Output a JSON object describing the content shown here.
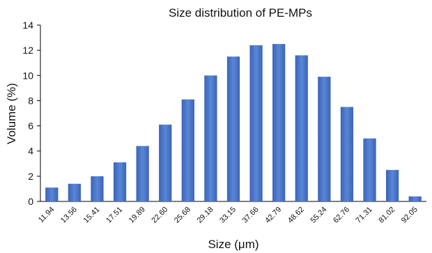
{
  "chart_data": {
    "type": "bar",
    "title": "Size distribution of PE-MPs",
    "xlabel": "Size (μm)",
    "ylabel": "Volume (%)",
    "ylim": [
      0,
      14
    ],
    "yticks": [
      0,
      2,
      4,
      6,
      8,
      10,
      12,
      14
    ],
    "grid": false,
    "legend": "none",
    "bar_color": "#4472c4",
    "categories": [
      "11.94",
      "13.56",
      "15.41",
      "17.51",
      "19.89",
      "22.60",
      "25.68",
      "29.18",
      "33.15",
      "37.66",
      "42.79",
      "48.62",
      "55.24",
      "62.76",
      "71.31",
      "81.02",
      "92.05"
    ],
    "values": [
      1.1,
      1.4,
      2.0,
      3.1,
      4.4,
      6.1,
      8.1,
      10.0,
      11.5,
      12.4,
      12.5,
      11.6,
      9.9,
      7.5,
      5.0,
      2.5,
      0.4
    ]
  }
}
